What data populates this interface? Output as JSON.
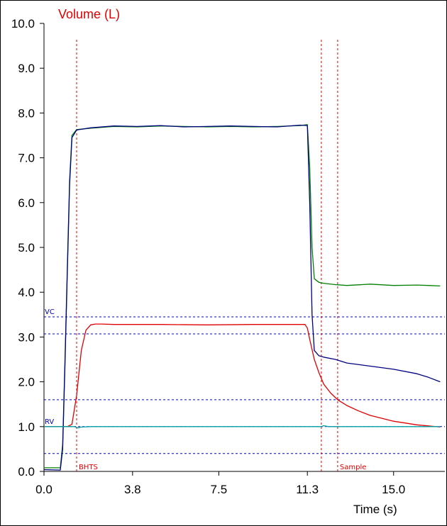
{
  "chart_data": {
    "type": "line",
    "title": "Volume (L)",
    "xlabel": "Time (s)",
    "ylabel": "",
    "xlim": [
      0,
      17.2
    ],
    "ylim": [
      0,
      10
    ],
    "y_ticks": [
      "0.0",
      "1.0",
      "2.0",
      "3.0",
      "4.0",
      "5.0",
      "6.0",
      "7.0",
      "8.0",
      "9.0",
      "10.0"
    ],
    "x_ticks": [
      {
        "value": 0.0,
        "label": "0.0"
      },
      {
        "value": 3.8,
        "label": "3.8"
      },
      {
        "value": 7.5,
        "label": "7.5"
      },
      {
        "value": 11.3,
        "label": "11.3"
      },
      {
        "value": 15.0,
        "label": "15.0"
      }
    ],
    "grid": false,
    "colors": {
      "title": "#e00000",
      "marker_line": "#e00000",
      "ref_line": "#0000c0",
      "green_series": "#008000",
      "navy_series": "#000080",
      "red_series": "#e00000",
      "teal_series": "#00a0a0"
    },
    "vertical_markers": [
      {
        "label": "BHTS",
        "x": 1.4
      },
      {
        "label": "",
        "x": 11.9
      },
      {
        "label": "Sample",
        "x": 12.6
      }
    ],
    "horizontal_refs": [
      {
        "label": "VC",
        "y": 3.45
      },
      {
        "label": "",
        "y": 3.07
      },
      {
        "label": "",
        "y": 1.6
      },
      {
        "label": "RV",
        "y": 1.0
      },
      {
        "label": "",
        "y": 0.4
      }
    ],
    "series": [
      {
        "color": "#008000",
        "x": [
          0.0,
          0.7,
          0.8,
          0.9,
          1.0,
          1.1,
          1.2,
          1.4,
          2.0,
          3.0,
          4.0,
          5.0,
          6.0,
          7.0,
          8.0,
          9.0,
          10.0,
          11.0,
          11.3,
          11.4,
          11.5,
          11.6,
          11.8,
          12.0,
          12.5,
          13.0,
          14.0,
          15.0,
          16.0,
          16.5,
          17.0
        ],
        "y": [
          0.08,
          0.08,
          0.6,
          2.5,
          4.5,
          6.5,
          7.5,
          7.63,
          7.66,
          7.7,
          7.69,
          7.71,
          7.7,
          7.69,
          7.7,
          7.69,
          7.7,
          7.72,
          7.74,
          6.8,
          5.0,
          4.3,
          4.22,
          4.2,
          4.17,
          4.15,
          4.18,
          4.15,
          4.16,
          4.15,
          4.14
        ]
      },
      {
        "color": "#000080",
        "x": [
          0.0,
          0.7,
          0.8,
          0.9,
          1.0,
          1.1,
          1.2,
          1.4,
          2.0,
          3.0,
          4.0,
          5.0,
          6.0,
          7.0,
          8.0,
          9.0,
          10.0,
          11.0,
          11.3,
          11.4,
          11.5,
          11.6,
          11.8,
          12.0,
          12.5,
          13.0,
          14.0,
          15.0,
          16.0,
          16.5,
          17.0
        ],
        "y": [
          0.04,
          0.03,
          0.5,
          2.4,
          4.4,
          6.4,
          7.45,
          7.62,
          7.67,
          7.71,
          7.7,
          7.72,
          7.69,
          7.7,
          7.71,
          7.7,
          7.69,
          7.73,
          7.72,
          6.0,
          3.5,
          2.7,
          2.58,
          2.55,
          2.5,
          2.42,
          2.35,
          2.28,
          2.18,
          2.1,
          2.0
        ]
      },
      {
        "color": "#e00000",
        "x": [
          0.0,
          1.0,
          1.2,
          1.4,
          1.6,
          1.8,
          2.0,
          2.2,
          2.5,
          3.0,
          5.0,
          7.0,
          9.0,
          10.0,
          11.0,
          11.2,
          11.3,
          11.4,
          11.6,
          11.8,
          12.0,
          12.3,
          12.6,
          13.0,
          13.5,
          14.0,
          15.0,
          16.0,
          17.0
        ],
        "y": [
          1.0,
          1.0,
          1.05,
          1.7,
          2.7,
          3.15,
          3.27,
          3.29,
          3.29,
          3.28,
          3.28,
          3.27,
          3.28,
          3.28,
          3.28,
          3.28,
          3.2,
          2.95,
          2.5,
          2.2,
          1.95,
          1.75,
          1.6,
          1.47,
          1.35,
          1.25,
          1.12,
          1.04,
          0.99
        ]
      },
      {
        "color": "#00a0a0",
        "x": [
          0.0,
          1.3,
          1.45,
          1.6,
          2.0,
          5.0,
          9.0,
          11.3,
          11.9,
          12.0,
          12.2,
          14.0,
          17.0
        ],
        "y": [
          1.0,
          1.0,
          0.97,
          0.99,
          1.0,
          1.0,
          1.0,
          1.0,
          1.0,
          1.02,
          1.0,
          1.0,
          1.0
        ]
      }
    ]
  }
}
